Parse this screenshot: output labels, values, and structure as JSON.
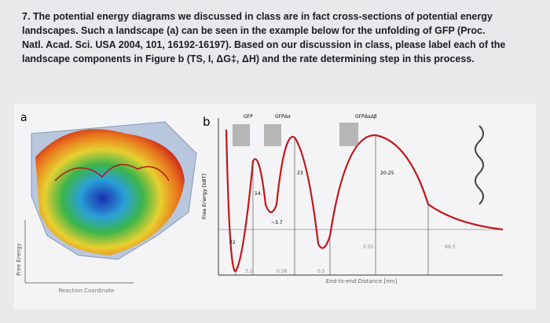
{
  "question": {
    "lines": [
      "7. The potential energy diagrams we discussed in class are in fact cross-sections of potential energy",
      "landscapes. Such a landscape (a) can be seen in the example below for the unfolding of GFP (Proc.",
      "Natl. Acad. Sci. USA 2004, 101, 16192-16197). Based on our discussion in class, please label each of the",
      "landscape components in Figure b (TS, I, ΔG‡, ΔH) and the rate determining step in this process."
    ]
  },
  "figure_a": {
    "label": "a",
    "y_axis": "Free Energy",
    "x_axis": "Reaction Coordinate"
  },
  "figure_b": {
    "label": "b",
    "y_axis": "Free Energy [kBT]",
    "x_axis": "End-to-end Distance [nm]",
    "states": [
      "GFP",
      "GFPΔα",
      "GFPΔαΔβ"
    ],
    "energy_labels": [
      "22",
      "14",
      "~3.7",
      "23",
      "20-25"
    ],
    "distance_labels": [
      "3.2",
      "0.28",
      "0.5",
      "0.55",
      "69.3"
    ]
  }
}
